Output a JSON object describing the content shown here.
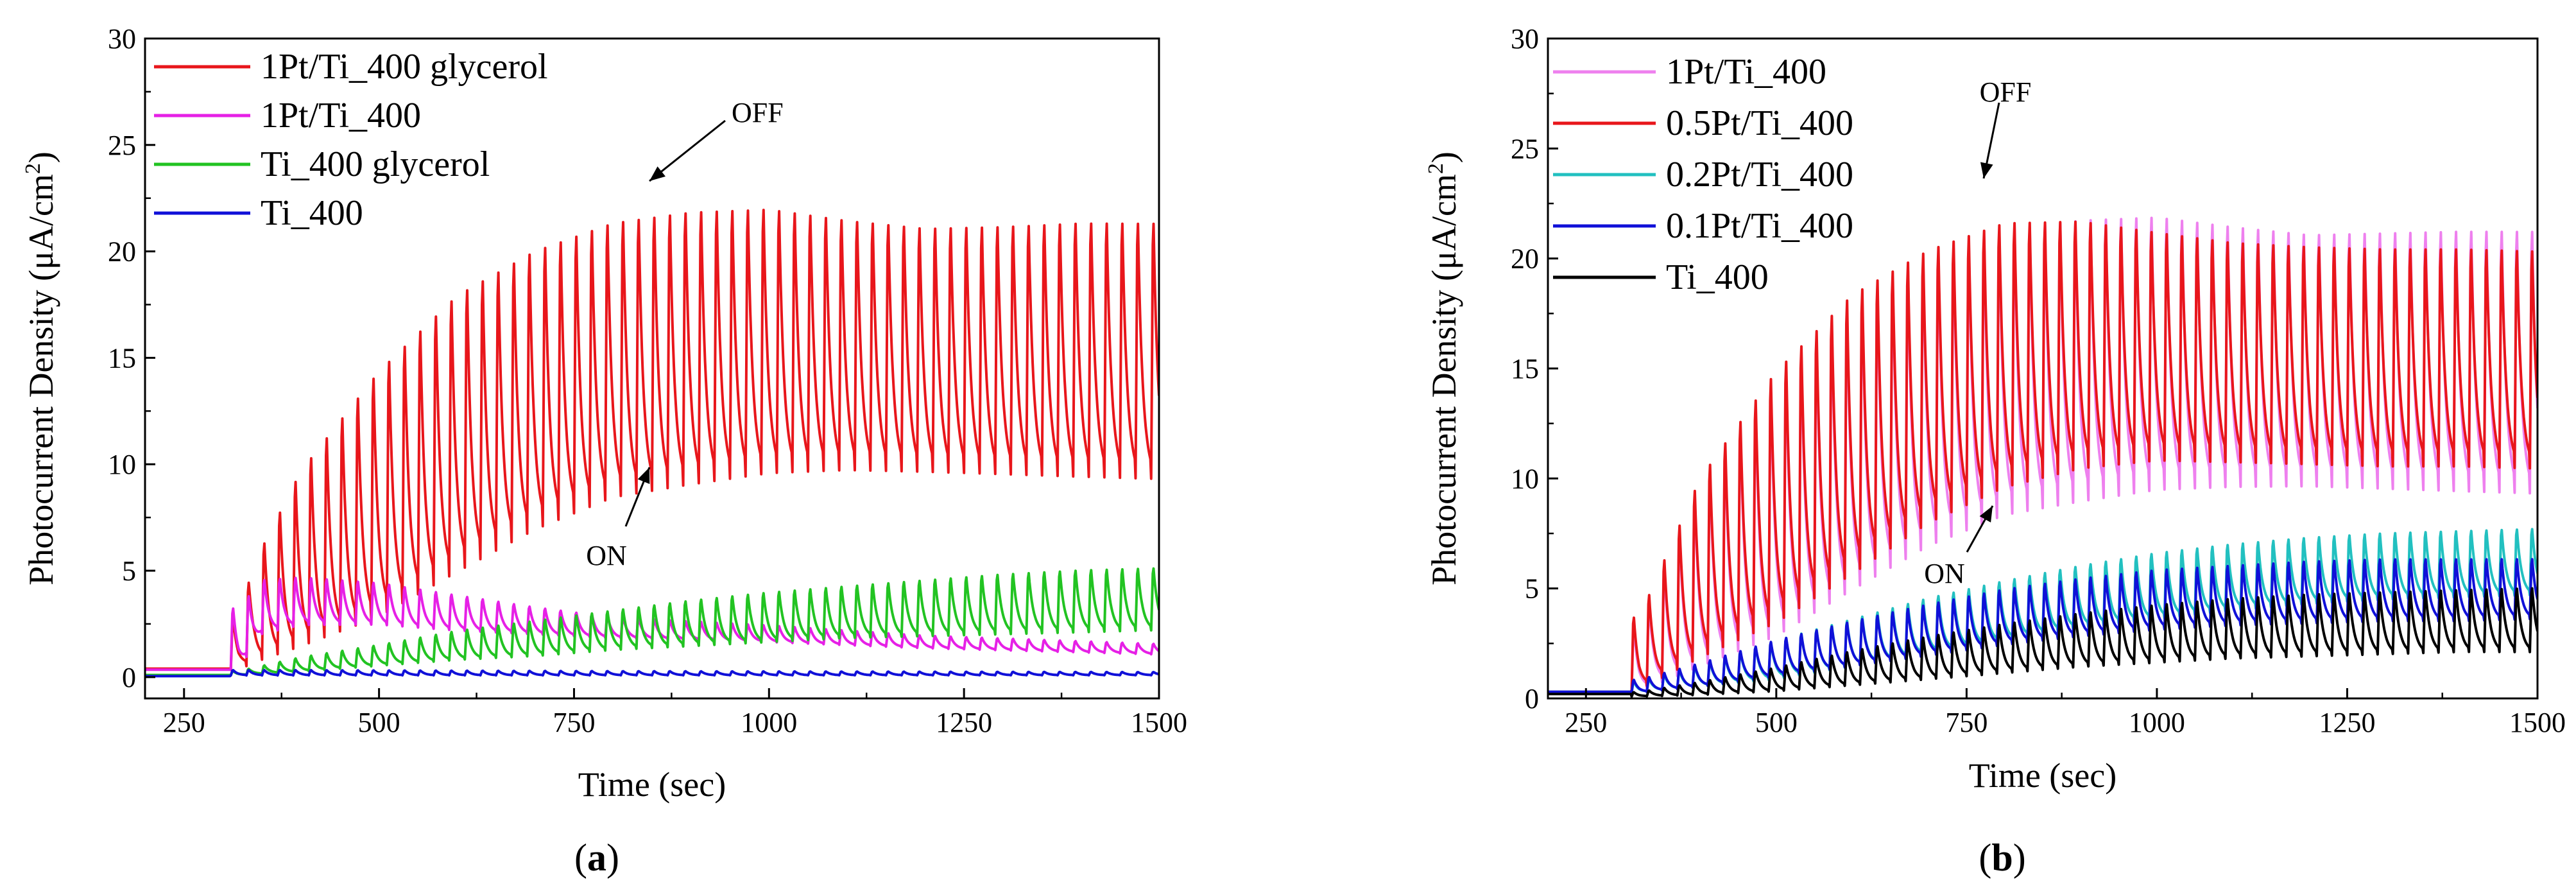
{
  "chart_data": [
    {
      "type": "line",
      "panel": "a",
      "caption_label": "a",
      "xlabel": "Time (sec)",
      "ylabel": "Photocurrent Density (μA/cm",
      "ylabel_sup": "2",
      "ylabel_close": ")",
      "xlim": [
        200,
        1500
      ],
      "ylim": [
        -1,
        30
      ],
      "x_ticks": [
        250,
        500,
        750,
        1000,
        1250,
        1500
      ],
      "y_ticks": [
        0,
        5,
        10,
        15,
        20,
        25,
        30
      ],
      "x_tick_labels": [
        "250",
        "500",
        "750",
        "1000",
        "1250",
        "1500"
      ],
      "y_tick_labels": [
        "0",
        "5",
        "10",
        "15",
        "20",
        "25",
        "30"
      ],
      "light_on_sec": 310,
      "chop_period_sec": 20,
      "legend_position": "top-left",
      "series": [
        {
          "name": "1Pt/Ti_400 glycerol",
          "color": "#e8161b",
          "baseline": 0.4,
          "off_t": [
            320,
            340,
            400,
            500,
            600,
            700,
            800,
            900,
            1000,
            1100,
            1200,
            1300,
            1400,
            1500
          ],
          "off_v": [
            3,
            5.8,
            10.5,
            15.5,
            19.2,
            21.3,
            22.6,
            23.1,
            23.2,
            22.6,
            22.2,
            22.3,
            22.5,
            22.5
          ],
          "on_t": [
            320,
            340,
            400,
            500,
            600,
            700,
            800,
            900,
            1000,
            1100,
            1200,
            1300,
            1400,
            1500
          ],
          "on_v": [
            0.5,
            1.0,
            2.0,
            3.6,
            5.8,
            7.8,
            9.3,
            9.9,
            10.4,
            10.5,
            10.4,
            10.3,
            10.2,
            10.1
          ]
        },
        {
          "name": "1Pt/Ti_400",
          "color": "#e620e6",
          "baseline": 0.35,
          "off_t": [
            320,
            350,
            400,
            500,
            600,
            700,
            800,
            1000,
            1200,
            1500
          ],
          "off_v": [
            3.5,
            4.8,
            4.9,
            4.6,
            4.0,
            3.4,
            2.9,
            2.5,
            2.0,
            1.6
          ],
          "on_t": [
            320,
            350,
            400,
            500,
            600,
            700,
            800,
            1000,
            1200,
            1500
          ],
          "on_v": [
            0.6,
            2.2,
            2.6,
            2.6,
            2.3,
            2.1,
            1.9,
            1.7,
            1.4,
            1.1
          ]
        },
        {
          "name": "Ti_400 glycerol",
          "color": "#22c322",
          "baseline": 0.1,
          "off_t": [
            320,
            400,
            500,
            600,
            700,
            800,
            900,
            1000,
            1100,
            1200,
            1300,
            1400,
            1500
          ],
          "off_v": [
            0.3,
            1.0,
            1.6,
            2.3,
            2.8,
            3.3,
            3.8,
            4.2,
            4.5,
            4.8,
            5.1,
            5.3,
            5.4
          ],
          "on_t": [
            320,
            400,
            500,
            600,
            700,
            800,
            900,
            1000,
            1100,
            1200,
            1300,
            1400,
            1500
          ],
          "on_v": [
            0.1,
            0.3,
            0.6,
            0.9,
            1.1,
            1.4,
            1.6,
            1.8,
            2.0,
            2.1,
            2.2,
            2.3,
            2.4
          ]
        },
        {
          "name": "Ti_400",
          "color": "#1010d8",
          "baseline": 0.05,
          "off_t": [
            320,
            400,
            800,
            1500
          ],
          "off_v": [
            0.35,
            0.35,
            0.3,
            0.25
          ],
          "on_t": [
            320,
            400,
            800,
            1500
          ],
          "on_v": [
            0.1,
            0.1,
            0.1,
            0.1
          ]
        }
      ],
      "annotations": [
        {
          "text": "OFF",
          "t": 860,
          "v": 23.3
        },
        {
          "text": "ON",
          "t": 860,
          "v": 9.6
        }
      ]
    },
    {
      "type": "line",
      "panel": "b",
      "caption_label": "b",
      "xlabel": "Time (sec)",
      "ylabel": "Photocurrent Density (μA/cm",
      "ylabel_sup": "2",
      "ylabel_close": ")",
      "xlim": [
        200,
        1500
      ],
      "ylim": [
        0,
        30
      ],
      "x_ticks": [
        250,
        500,
        750,
        1000,
        1250,
        1500
      ],
      "y_ticks": [
        0,
        5,
        10,
        15,
        20,
        25,
        30
      ],
      "x_tick_labels": [
        "250",
        "500",
        "750",
        "1000",
        "1250",
        "1500"
      ],
      "y_tick_labels": [
        "0",
        "5",
        "10",
        "15",
        "20",
        "25",
        "30"
      ],
      "light_on_sec": 310,
      "chop_period_sec": 20,
      "legend_position": "top-left",
      "series": [
        {
          "name": "1Pt/Ti_400",
          "color": "#ee80ee",
          "baseline": 0.3,
          "off_t": [
            320,
            400,
            500,
            600,
            700,
            800,
            900,
            1000,
            1100,
            1200,
            1300,
            1400,
            1500
          ],
          "off_v": [
            3.5,
            10.5,
            15.5,
            19.2,
            21.3,
            22.6,
            23.0,
            23.1,
            22.6,
            22.2,
            22.3,
            22.4,
            22.4
          ],
          "on_t": [
            320,
            400,
            500,
            600,
            700,
            800,
            900,
            1000,
            1100,
            1200,
            1300,
            1400,
            1500
          ],
          "on_v": [
            0.5,
            2.0,
            3.6,
            5.8,
            7.8,
            9.2,
            9.8,
            10.3,
            10.4,
            10.4,
            10.3,
            10.2,
            10.1
          ]
        },
        {
          "name": "0.5Pt/Ti_400",
          "color": "#e8161b",
          "baseline": 0.3,
          "off_t": [
            320,
            400,
            500,
            600,
            700,
            800,
            900,
            1000,
            1100,
            1200,
            1300,
            1400,
            1500
          ],
          "off_v": [
            4,
            10.8,
            16.0,
            19.6,
            21.6,
            22.8,
            22.8,
            22.2,
            21.7,
            21.5,
            21.4,
            21.4,
            21.3
          ],
          "on_t": [
            320,
            400,
            500,
            600,
            700,
            800,
            900,
            1000,
            1100,
            1200,
            1300,
            1400,
            1500
          ],
          "on_v": [
            0.6,
            2.4,
            4.2,
            6.5,
            8.8,
            10.4,
            11.2,
            11.5,
            11.4,
            11.3,
            11.2,
            11.2,
            11.1
          ]
        },
        {
          "name": "0.2Pt/Ti_400",
          "color": "#22c0c0",
          "baseline": 0.3,
          "off_t": [
            320,
            400,
            500,
            600,
            700,
            800,
            900,
            1000,
            1100,
            1200,
            1300,
            1400,
            1500
          ],
          "off_v": [
            0.8,
            1.6,
            2.8,
            3.8,
            4.8,
            5.6,
            6.3,
            6.9,
            7.3,
            7.6,
            7.8,
            7.9,
            8.0
          ],
          "on_t": [
            320,
            400,
            500,
            600,
            700,
            800,
            900,
            1000,
            1100,
            1200,
            1300,
            1400,
            1500
          ],
          "on_v": [
            0.3,
            0.6,
            1.0,
            1.6,
            2.2,
            2.8,
            3.4,
            3.8,
            4.2,
            4.5,
            4.7,
            4.8,
            4.9
          ]
        },
        {
          "name": "0.1Pt/Ti_400",
          "color": "#1010d8",
          "baseline": 0.3,
          "off_t": [
            320,
            400,
            500,
            600,
            700,
            800,
            900,
            1000,
            1100,
            1200,
            1300,
            1400,
            1500
          ],
          "off_v": [
            0.9,
            1.7,
            2.8,
            3.7,
            4.5,
            5.2,
            5.7,
            6.1,
            6.3,
            6.5,
            6.6,
            6.6,
            6.6
          ],
          "on_t": [
            320,
            400,
            500,
            600,
            700,
            800,
            900,
            1000,
            1100,
            1200,
            1300,
            1400,
            1500
          ],
          "on_v": [
            0.3,
            0.6,
            1.1,
            1.6,
            2.1,
            2.6,
            3.0,
            3.3,
            3.5,
            3.6,
            3.7,
            3.7,
            3.8
          ]
        },
        {
          "name": "Ti_400",
          "color": "#000000",
          "baseline": 0.2,
          "off_t": [
            320,
            400,
            500,
            600,
            700,
            800,
            900,
            1000,
            1100,
            1200,
            1300,
            1400,
            1500
          ],
          "off_v": [
            0.3,
            0.8,
            1.5,
            2.3,
            3.0,
            3.6,
            4.1,
            4.5,
            4.8,
            5.0,
            5.1,
            5.2,
            5.3
          ],
          "on_t": [
            320,
            400,
            500,
            600,
            700,
            800,
            900,
            1000,
            1100,
            1200,
            1300,
            1400,
            1500
          ],
          "on_v": [
            0.1,
            0.2,
            0.4,
            0.7,
            1.0,
            1.3,
            1.6,
            1.8,
            2.0,
            2.1,
            2.2,
            2.3,
            2.3
          ]
        }
      ],
      "annotations": [
        {
          "text": "OFF",
          "t": 785,
          "v": 23.0
        },
        {
          "text": "ON",
          "t": 775,
          "v": 9.3
        }
      ]
    }
  ]
}
